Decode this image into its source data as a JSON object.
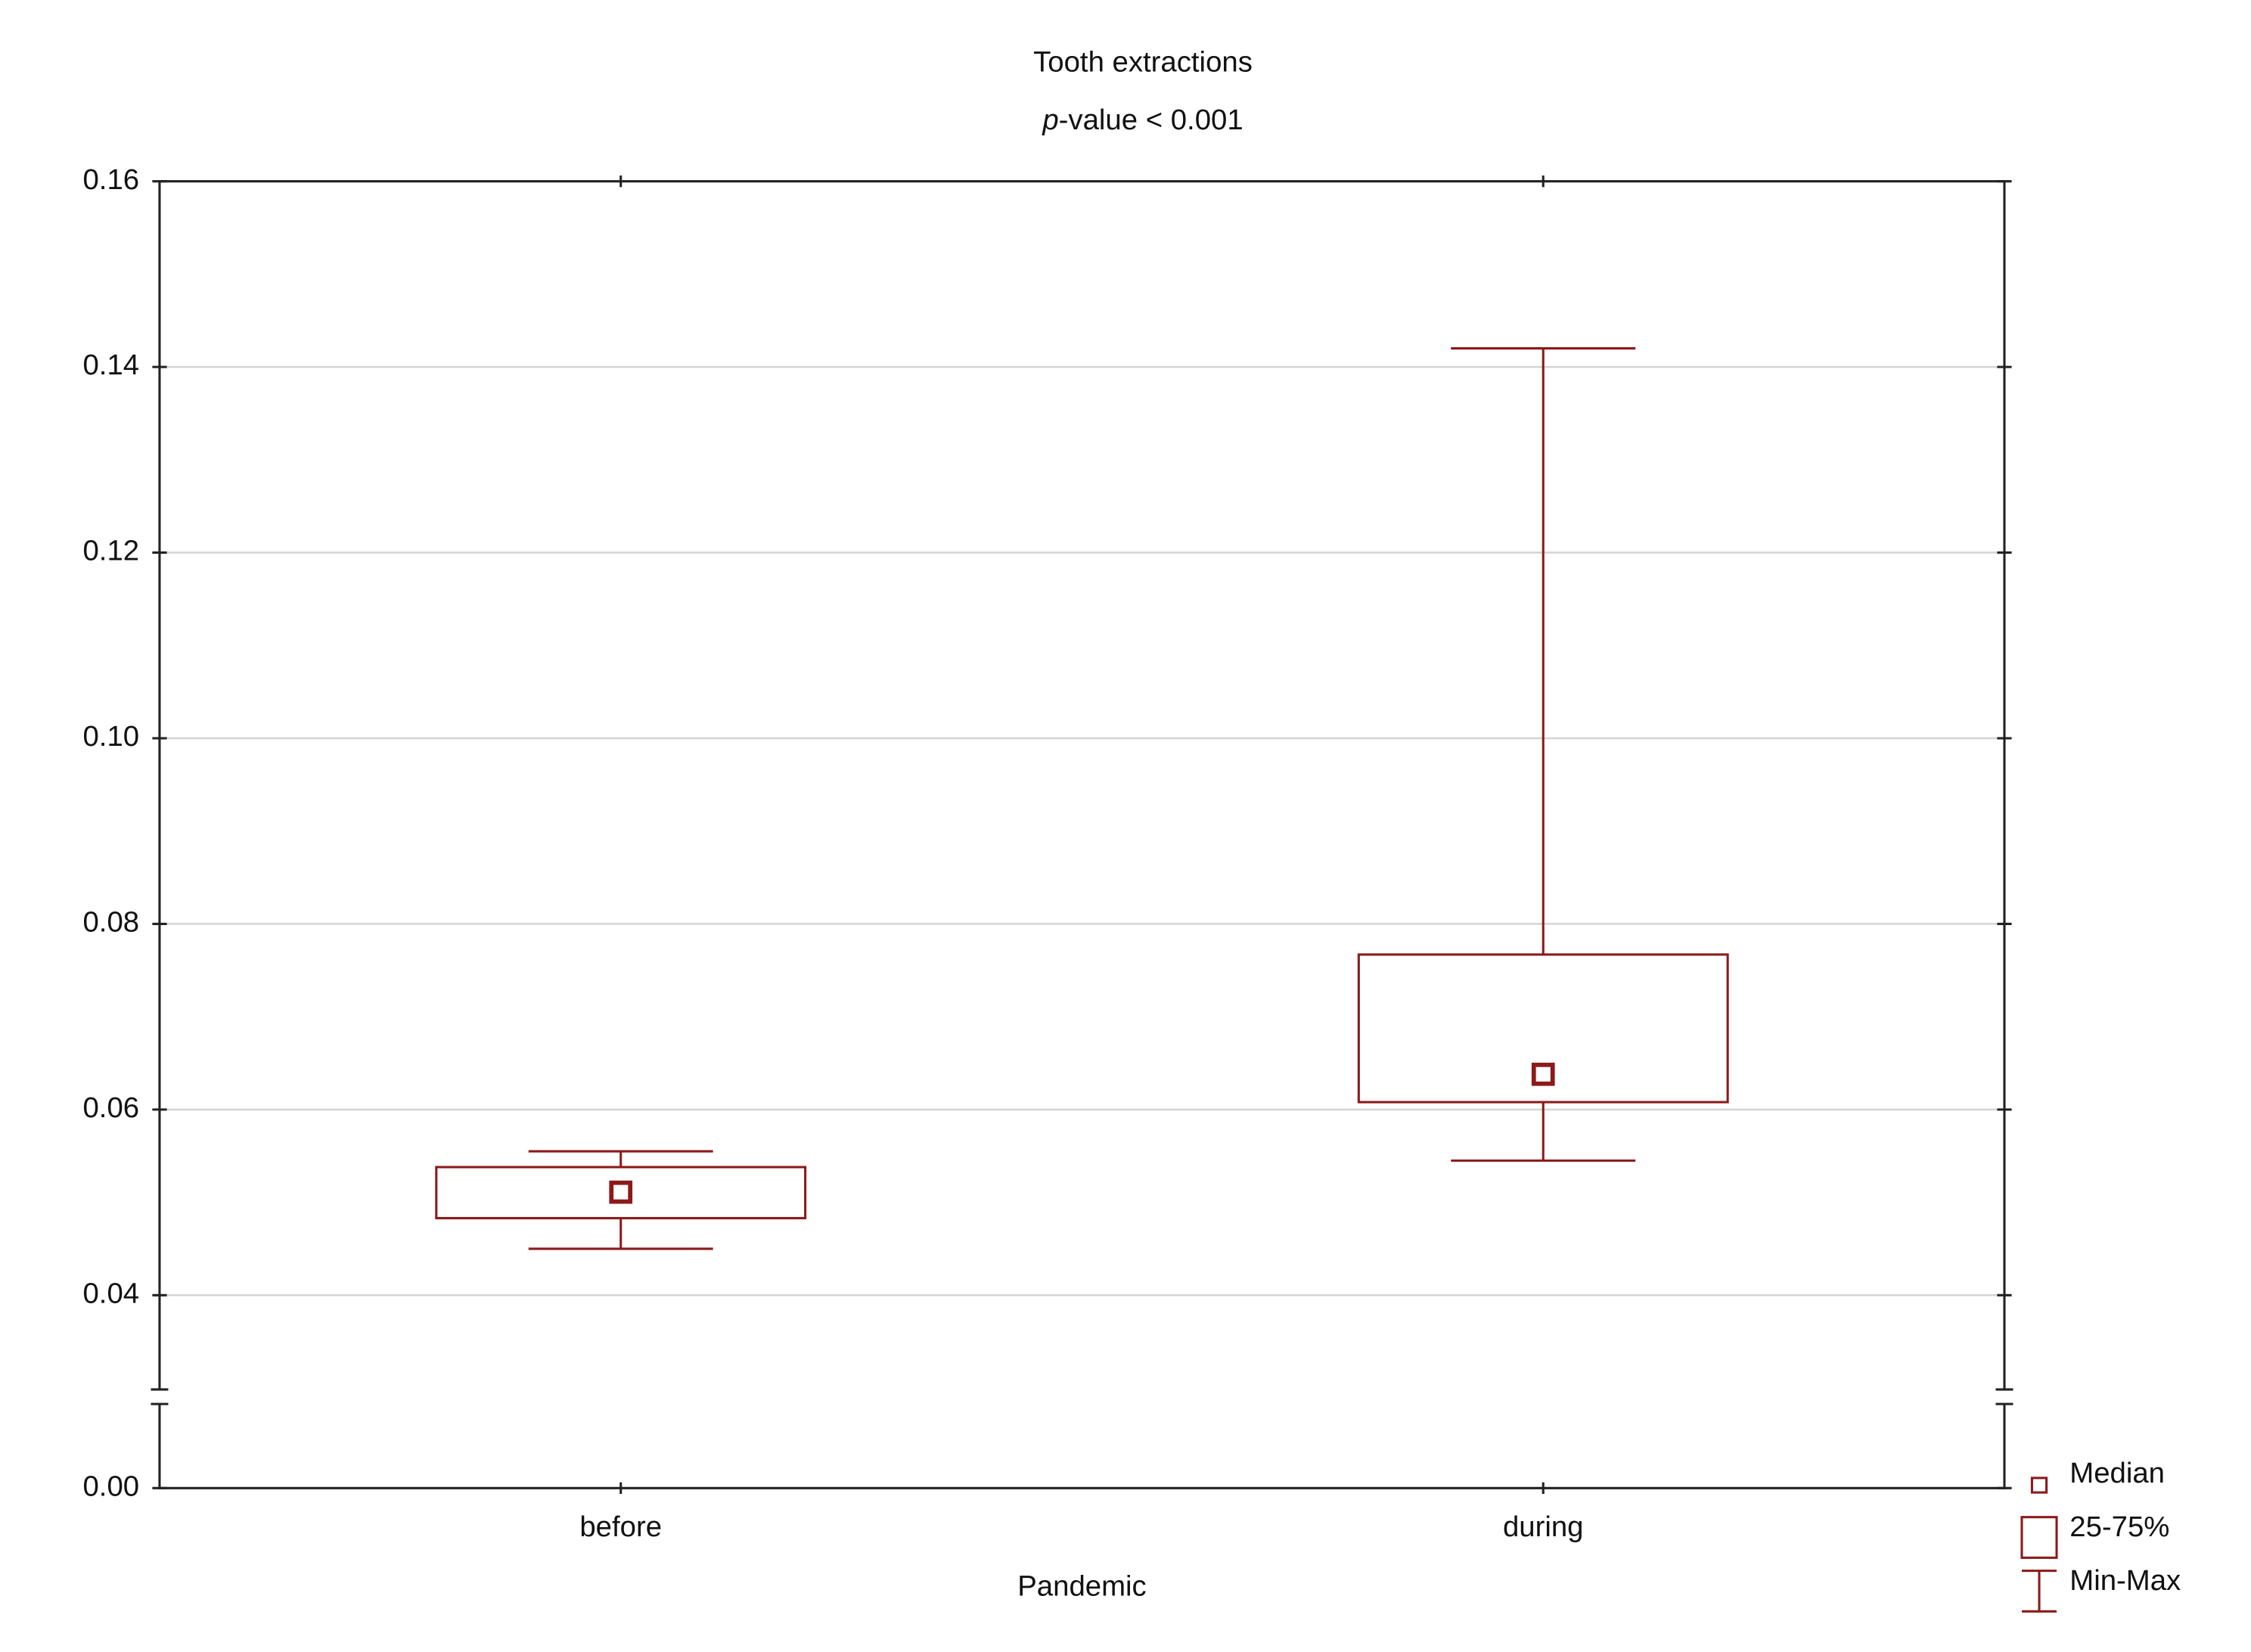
{
  "chart_data": {
    "type": "box",
    "title": "Tooth extractions",
    "subtitle": "p-value < 0.001",
    "x_label": "Pandemic",
    "categories": [
      "before",
      "during"
    ],
    "min": [
      0.045,
      0.0545
    ],
    "q1": [
      0.0483,
      0.0608
    ],
    "median": [
      0.0511,
      0.0638
    ],
    "q3": [
      0.0538,
      0.0767
    ],
    "max": [
      0.0555,
      0.142
    ],
    "color": "#8b1a1a",
    "ylim": [
      0,
      0.16
    ],
    "axis_break": [
      0,
      0.03
    ],
    "yticks": [
      {
        "value": 0,
        "label": "0.00"
      },
      0.04,
      0.06,
      0.08,
      {
        "value": 0.1,
        "label": "0.10"
      },
      0.12,
      0.14,
      0.16
    ],
    "grid": true,
    "legend": [
      "Median",
      "25-75%",
      "Min-Max"
    ]
  }
}
